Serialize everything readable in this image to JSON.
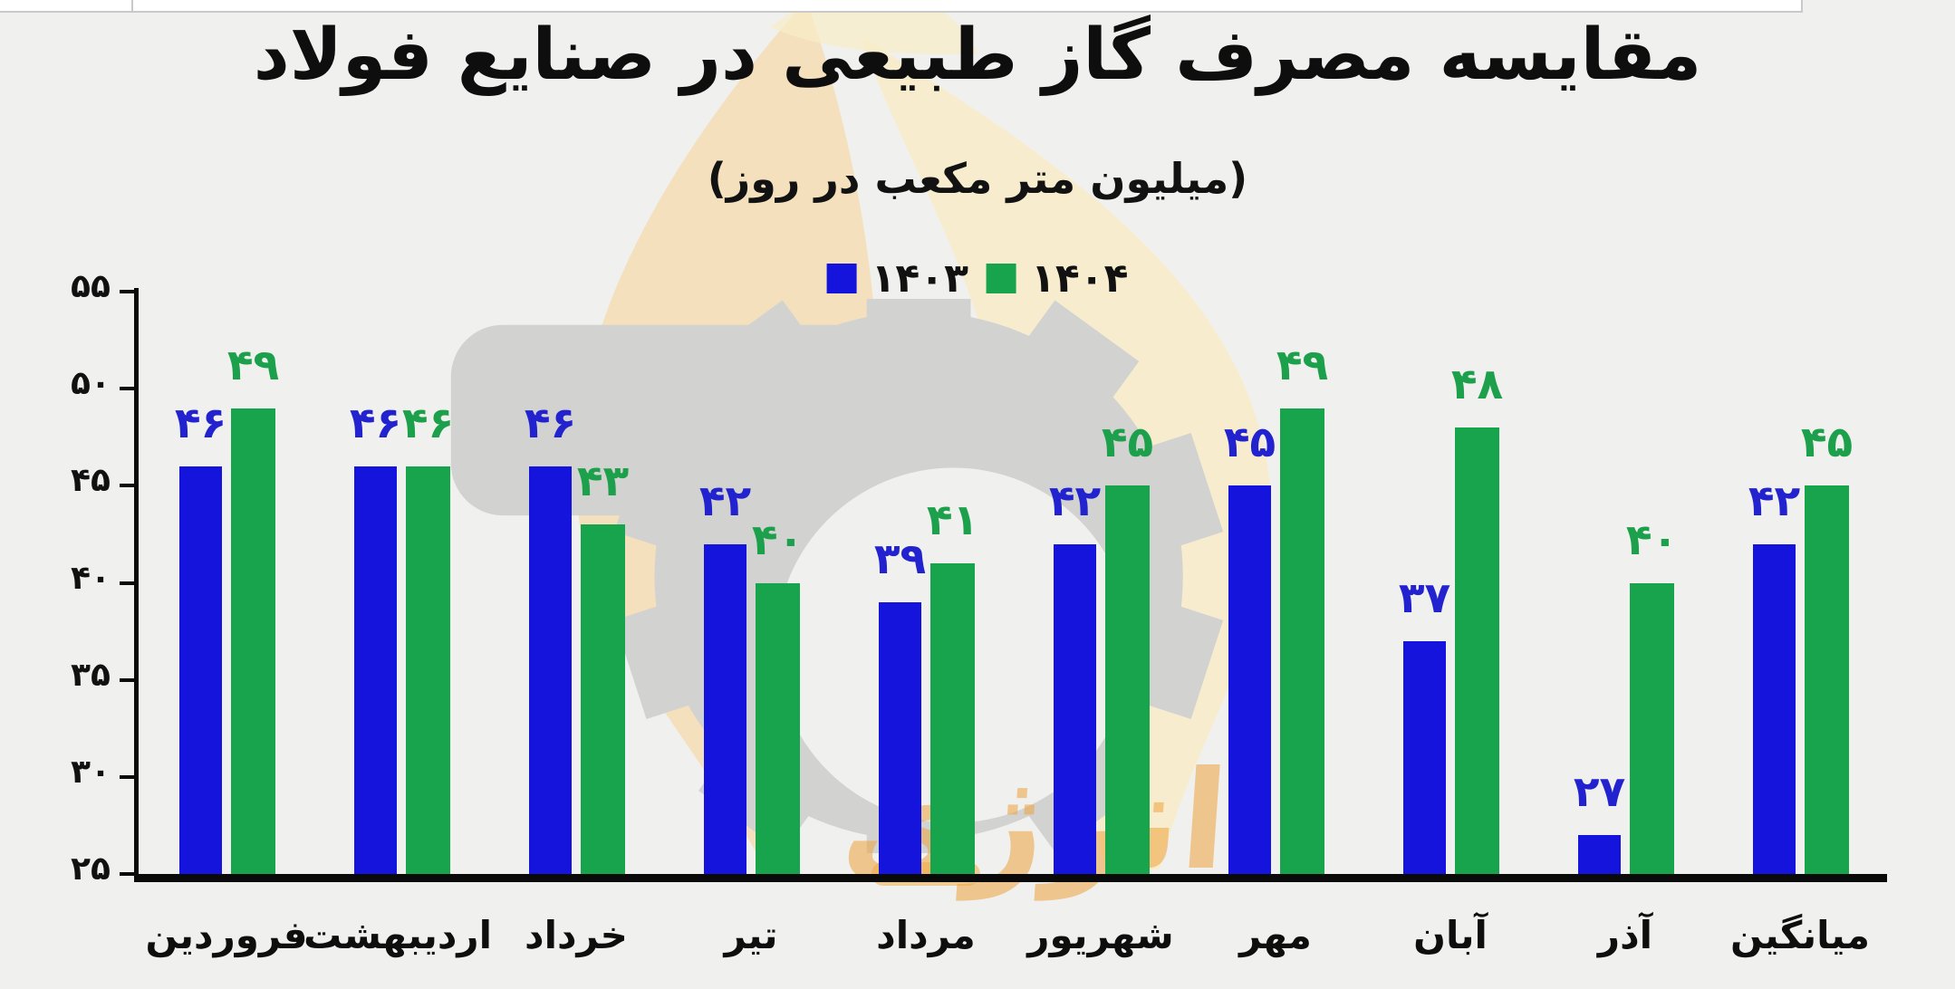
{
  "chart": {
    "title": "مقایسه مصرف گاز طبیعی در صنایع فولاد",
    "subtitle": "(میلیون متر مکعب در روز)",
    "legend": [
      {
        "label": "۱۴۰۳",
        "color": "#1414dc"
      },
      {
        "label": "۱۴۰۴",
        "color": "#18a44c"
      }
    ]
  },
  "chart_data": {
    "type": "bar",
    "categories": [
      "فروردین",
      "اردیبهشت",
      "خرداد",
      "تیر",
      "مرداد",
      "شهریور",
      "مهر",
      "آبان",
      "آذر",
      "میانگین"
    ],
    "series": [
      {
        "name": "۱۴۰۳",
        "color": "#1414dc",
        "label_color": "#2222cf",
        "values": [
          46,
          46,
          46,
          42,
          39,
          42,
          45,
          37,
          27,
          42
        ],
        "labels_fa": [
          "۴۶",
          "۴۶",
          "۴۶",
          "۴۲",
          "۳۹",
          "۴۲",
          "۴۵",
          "۳۷",
          "۲۷",
          "۴۲"
        ]
      },
      {
        "name": "۱۴۰۴",
        "color": "#18a44c",
        "label_color": "#1da04b",
        "values": [
          49,
          46,
          43,
          40,
          41,
          45,
          49,
          48,
          40,
          45
        ],
        "labels_fa": [
          "۴۹",
          "۴۶",
          "۴۳",
          "۴۰",
          "۴۱",
          "۴۵",
          "۴۹",
          "۴۸",
          "۴۰",
          "۴۵"
        ]
      }
    ],
    "ylim": [
      25,
      55
    ],
    "yticks": [
      25,
      30,
      35,
      40,
      45,
      50,
      55
    ],
    "ytick_labels_fa": [
      "۲۵",
      "۳۰",
      "۳۵",
      "۴۰",
      "۴۵",
      "۵۰",
      "۵۵"
    ],
    "xlabel": "",
    "ylabel": "",
    "legend_position": "top-center",
    "grid": false,
    "background": "#f0f0ee"
  },
  "watermark": {
    "energy_text": "انرژی"
  }
}
